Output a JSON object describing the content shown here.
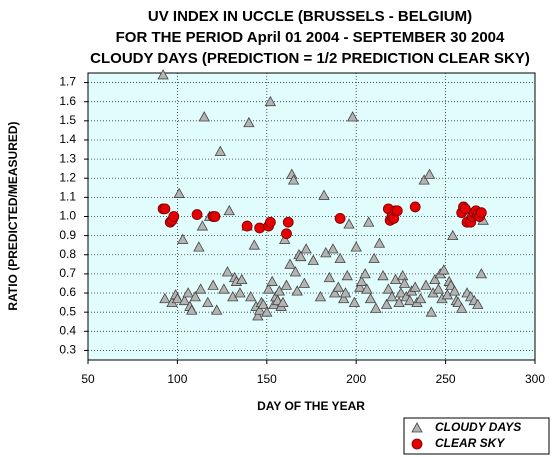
{
  "chart_data": {
    "type": "scatter",
    "title": [
      "UV INDEX IN UCCLE (BRUSSELS - BELGIUM)",
      "FOR THE PERIOD April 01 2004 - SEPTEMBER 30 2004",
      "CLOUDY DAYS (PREDICTION = 1/2 PREDICTION CLEAR SKY)"
    ],
    "x_label": "DAY OF THE YEAR",
    "y_label": "RATIO (PREDICTED/MEASURED)",
    "xlim": [
      50,
      300
    ],
    "xticks": [
      50,
      100,
      150,
      200,
      250,
      300
    ],
    "ylim": [
      0.25,
      1.75
    ],
    "yticks": [
      0.3,
      0.4,
      0.5,
      0.6,
      0.7,
      0.8,
      0.9,
      {
        "value": 1,
        "label": "1.0"
      },
      1.1,
      1.2,
      1.3,
      1.4,
      1.5,
      1.6,
      1.7
    ],
    "grid": true,
    "legend": "lower right",
    "series": [
      {
        "name": "CLOUDY DAYS",
        "color": "#b4b4b4",
        "marker": "triangle",
        "x": [
          92,
          93,
          97,
          99,
          100,
          101,
          103,
          104,
          106,
          107,
          108,
          110,
          112,
          113,
          114,
          115,
          117,
          118,
          120,
          122,
          124,
          126,
          128,
          129,
          131,
          132,
          133,
          135,
          136,
          139,
          140,
          141,
          143,
          144,
          145,
          146,
          147,
          148,
          150,
          151,
          152,
          153,
          154,
          155,
          156,
          157,
          158,
          159,
          160,
          161,
          163,
          164,
          165,
          166,
          167,
          168,
          169,
          171,
          172,
          176,
          180,
          182,
          183,
          185,
          187,
          188,
          190,
          191,
          193,
          194,
          195,
          196,
          198,
          199,
          200,
          202,
          203,
          205,
          206,
          207,
          208,
          210,
          211,
          213,
          215,
          217,
          218,
          220,
          222,
          224,
          225,
          226,
          227,
          228,
          230,
          231,
          233,
          234,
          236,
          238,
          239,
          241,
          242,
          243,
          244,
          246,
          247,
          248,
          249,
          251,
          252,
          253,
          254,
          255,
          256,
          257,
          259,
          262,
          264,
          266,
          268,
          270,
          271
        ],
        "values": [
          1.74,
          0.57,
          0.55,
          0.59,
          0.57,
          1.12,
          0.88,
          0.56,
          0.6,
          0.53,
          0.51,
          0.58,
          0.84,
          0.62,
          0.95,
          1.52,
          0.55,
          1.0,
          0.64,
          0.51,
          1.34,
          0.62,
          0.71,
          1.03,
          0.58,
          0.68,
          0.66,
          0.6,
          0.67,
          0.95,
          1.49,
          0.58,
          0.85,
          0.53,
          0.48,
          0.51,
          0.55,
          0.54,
          0.5,
          0.62,
          1.6,
          0.66,
          0.54,
          0.58,
          0.56,
          0.61,
          0.53,
          0.55,
          0.88,
          0.64,
          0.75,
          1.22,
          1.19,
          0.71,
          0.61,
          0.8,
          0.79,
          0.65,
          0.83,
          0.77,
          0.58,
          1.11,
          0.81,
          0.68,
          0.83,
          0.6,
          0.63,
          0.78,
          0.57,
          0.6,
          0.69,
          0.96,
          1.52,
          0.55,
          0.84,
          0.63,
          0.66,
          0.7,
          0.62,
          0.97,
          0.57,
          0.78,
          0.52,
          0.86,
          0.69,
          0.54,
          0.62,
          0.58,
          0.67,
          0.55,
          0.6,
          0.69,
          0.65,
          0.58,
          0.56,
          0.61,
          0.63,
          0.55,
          0.57,
          1.19,
          0.64,
          1.22,
          0.5,
          0.6,
          0.67,
          0.62,
          0.7,
          0.57,
          0.72,
          0.59,
          0.66,
          0.64,
          0.9,
          0.61,
          0.56,
          0.55,
          0.52,
          0.6,
          0.58,
          0.56,
          0.54,
          0.7,
          0.98
        ]
      },
      {
        "name": "CLEAR SKY",
        "color": "#e60000",
        "marker": "circle",
        "x": [
          92,
          93,
          96,
          97,
          98,
          111,
          120,
          121,
          139,
          146,
          151,
          152,
          161,
          162,
          191,
          218,
          219,
          220,
          221,
          222,
          223,
          233,
          259,
          260,
          261,
          262,
          264,
          265,
          266,
          267,
          268,
          269,
          270
        ],
        "values": [
          1.04,
          1.04,
          0.97,
          0.98,
          1.0,
          1.01,
          1.0,
          1.0,
          0.95,
          0.94,
          0.95,
          0.97,
          0.91,
          0.97,
          0.99,
          1.04,
          0.98,
          1.0,
          0.99,
          1.03,
          1.03,
          1.05,
          1.02,
          1.05,
          1.04,
          0.97,
          0.97,
          1.0,
          1.02,
          1.03,
          1.01,
          1.0,
          1.02
        ]
      }
    ]
  }
}
